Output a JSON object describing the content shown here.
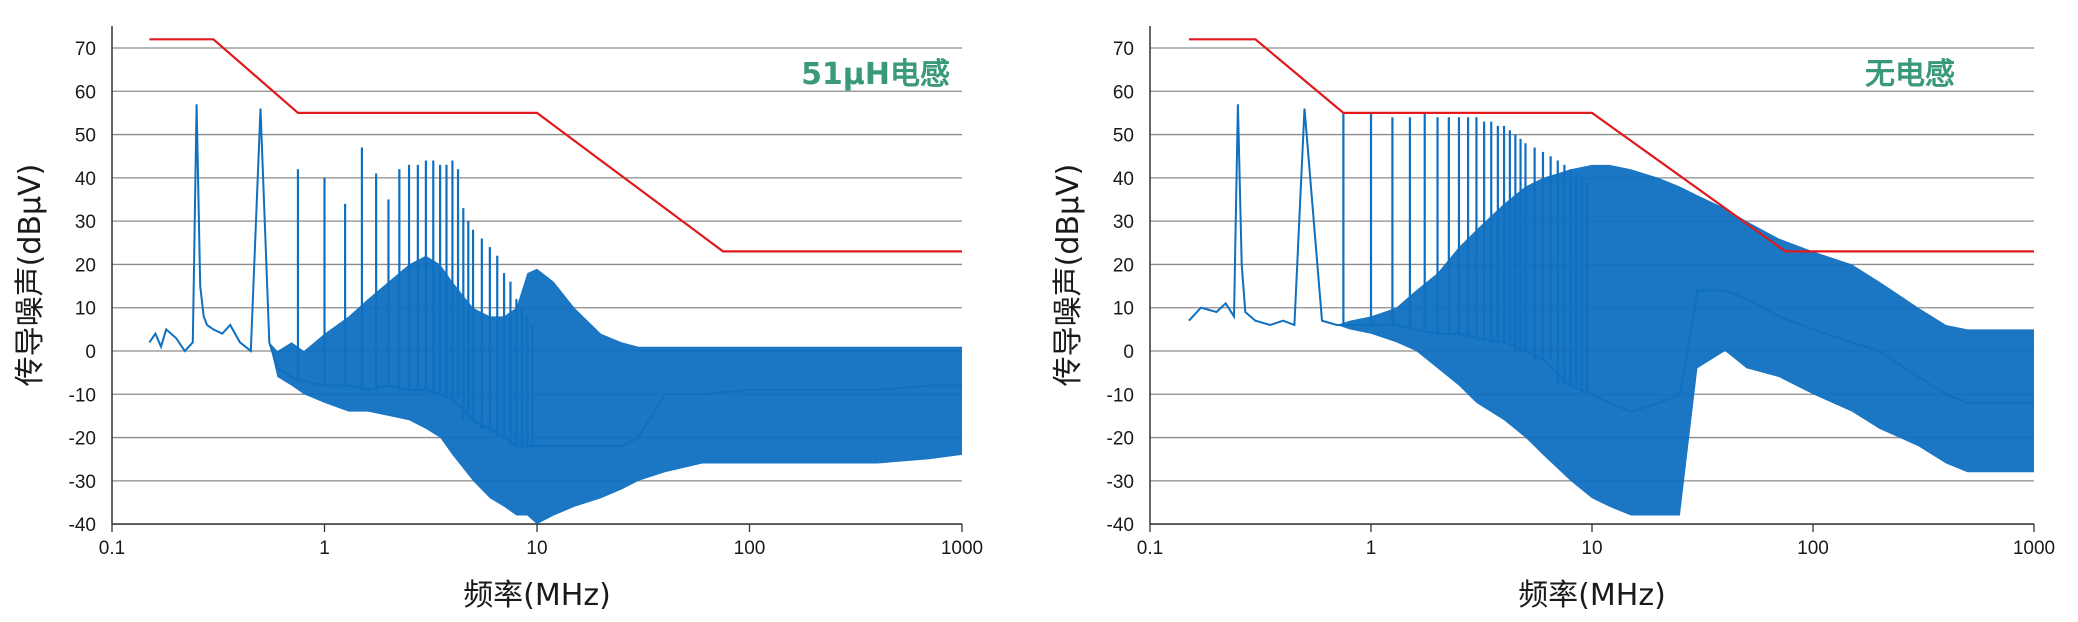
{
  "chart_data": [
    {
      "type": "line",
      "annotation": "51μH电感",
      "xlabel": "频率(MHz)",
      "ylabel": "传导噪声(dBμV)",
      "x_scale": "log",
      "xlim": [
        0.1,
        1000
      ],
      "ylim": [
        -40,
        75
      ],
      "x_ticks": [
        "0.1",
        "1",
        "10",
        "100",
        "1000"
      ],
      "y_ticks": [
        "70",
        "60",
        "50",
        "40",
        "30",
        "20",
        "10",
        "0",
        "-10",
        "-20",
        "-30",
        "-40"
      ],
      "grid": true,
      "colors": {
        "limit": "#e0191b",
        "noise": "#0f6fc0",
        "grid": "#8c8c8c"
      },
      "series": [
        {
          "role": "limit",
          "x": [
            0.15,
            0.3,
            0.75,
            10,
            75,
            1000
          ],
          "y": [
            72,
            72,
            55,
            55,
            23,
            23
          ]
        },
        {
          "role": "noise",
          "x": [
            0.15,
            0.16,
            0.17,
            0.18,
            0.2,
            0.22,
            0.24,
            0.25,
            0.26,
            0.27,
            0.28,
            0.3,
            0.33,
            0.36,
            0.4,
            0.45,
            0.5,
            0.55,
            0.6,
            0.7,
            0.8,
            1,
            1.3,
            1.6,
            2,
            2.5,
            3,
            3.5,
            4,
            5,
            6,
            7,
            8,
            9,
            10,
            12,
            15,
            20,
            25,
            30,
            40,
            60,
            100,
            200,
            400,
            700,
            1000
          ],
          "y": [
            2,
            4,
            1,
            5,
            3,
            0,
            2,
            57,
            15,
            8,
            6,
            5,
            4,
            6,
            2,
            0,
            56,
            2,
            -4,
            -6,
            -7,
            -8,
            -8,
            -9,
            -8,
            -9,
            -9,
            -10,
            -11,
            -16,
            -18,
            -20,
            -22,
            -22,
            -22,
            -22,
            -22,
            -22,
            -22,
            -20,
            -10,
            -10,
            -9,
            -9,
            -9,
            -8,
            -8
          ],
          "upper": [
            2,
            4,
            1,
            5,
            3,
            0,
            2,
            57,
            15,
            8,
            6,
            5,
            4,
            6,
            2,
            0,
            56,
            2,
            0,
            2,
            0,
            4,
            8,
            12,
            16,
            20,
            22,
            20,
            16,
            10,
            8,
            8,
            10,
            18,
            19,
            16,
            10,
            4,
            2,
            1,
            1,
            1,
            1,
            1,
            1,
            1,
            1
          ],
          "lower": [
            2,
            4,
            1,
            5,
            3,
            0,
            2,
            57,
            15,
            8,
            6,
            5,
            4,
            6,
            2,
            0,
            56,
            2,
            -6,
            -8,
            -10,
            -12,
            -14,
            -14,
            -15,
            -16,
            -18,
            -20,
            -24,
            -30,
            -34,
            -36,
            -38,
            -38,
            -40,
            -38,
            -36,
            -34,
            -32,
            -30,
            -28,
            -26,
            -26,
            -26,
            -26,
            -25,
            -24
          ],
          "spikes_x": [
            0.25,
            0.5,
            0.75,
            1,
            1.25,
            1.5,
            1.75,
            2,
            2.25,
            2.5,
            2.75,
            3,
            3.25,
            3.5,
            3.75,
            4,
            4.25,
            4.5,
            4.75,
            5,
            5.5,
            6,
            6.5,
            7,
            7.5,
            8,
            8.5,
            9,
            9.5
          ],
          "spikes_y": [
            57,
            56,
            42,
            40,
            34,
            47,
            41,
            35,
            42,
            43,
            43,
            44,
            44,
            43,
            43,
            44,
            42,
            33,
            30,
            28,
            26,
            24,
            22,
            18,
            16,
            12,
            10,
            8,
            6
          ]
        }
      ]
    },
    {
      "type": "line",
      "annotation": "无电感",
      "xlabel": "频率(MHz)",
      "ylabel": "传导噪声(dBμV)",
      "x_scale": "log",
      "xlim": [
        0.1,
        1000
      ],
      "ylim": [
        -40,
        75
      ],
      "x_ticks": [
        "0.1",
        "1",
        "10",
        "100",
        "1000"
      ],
      "y_ticks": [
        "70",
        "60",
        "50",
        "40",
        "30",
        "20",
        "10",
        "0",
        "-10",
        "-20",
        "-30",
        "-40"
      ],
      "grid": true,
      "colors": {
        "limit": "#e0191b",
        "noise": "#0f6fc0",
        "grid": "#8c8c8c"
      },
      "series": [
        {
          "role": "limit",
          "x": [
            0.15,
            0.3,
            0.75,
            10,
            75,
            1000
          ],
          "y": [
            72,
            72,
            55,
            55,
            23,
            23
          ]
        },
        {
          "role": "noise",
          "x": [
            0.15,
            0.17,
            0.2,
            0.22,
            0.24,
            0.25,
            0.26,
            0.27,
            0.3,
            0.35,
            0.4,
            0.45,
            0.5,
            0.6,
            0.7,
            0.8,
            1,
            1.3,
            1.6,
            2,
            2.5,
            3,
            4,
            5,
            6,
            8,
            10,
            12,
            15,
            20,
            25,
            30,
            40,
            50,
            70,
            100,
            150,
            200,
            300,
            400,
            500,
            700,
            1000
          ],
          "y": [
            7,
            10,
            9,
            11,
            8,
            57,
            20,
            9,
            7,
            6,
            7,
            6,
            56,
            7,
            6,
            6,
            6,
            6,
            5,
            4,
            4,
            3,
            2,
            0,
            -2,
            -8,
            -10,
            -12,
            -14,
            -12,
            -10,
            14,
            14,
            12,
            8,
            5,
            2,
            0,
            -6,
            -10,
            -12,
            -12,
            -12
          ],
          "upper": [
            7,
            10,
            9,
            11,
            8,
            57,
            20,
            9,
            7,
            6,
            7,
            6,
            56,
            7,
            6,
            7,
            8,
            10,
            14,
            18,
            24,
            28,
            34,
            38,
            40,
            42,
            43,
            43,
            42,
            40,
            38,
            36,
            33,
            30,
            26,
            23,
            20,
            16,
            10,
            6,
            5,
            5,
            5
          ],
          "lower": [
            7,
            10,
            9,
            11,
            8,
            57,
            20,
            9,
            7,
            6,
            7,
            6,
            56,
            7,
            6,
            5,
            4,
            2,
            0,
            -4,
            -8,
            -12,
            -16,
            -20,
            -24,
            -30,
            -34,
            -36,
            -38,
            -38,
            -38,
            -4,
            0,
            -4,
            -6,
            -10,
            -14,
            -18,
            -22,
            -26,
            -28,
            -28,
            -28
          ],
          "spikes_x": [
            0.25,
            0.5,
            0.75,
            1,
            1.25,
            1.5,
            1.75,
            2,
            2.25,
            2.5,
            2.75,
            3,
            3.25,
            3.5,
            3.75,
            4,
            4.25,
            4.5,
            4.75,
            5,
            5.5,
            6,
            6.5,
            7,
            7.5,
            8,
            8.5,
            9,
            9.5
          ],
          "spikes_y": [
            57,
            56,
            55,
            55,
            54,
            54,
            55,
            54,
            54,
            54,
            54,
            54,
            53,
            53,
            52,
            52,
            51,
            50,
            49,
            48,
            47,
            46,
            45,
            44,
            43,
            42,
            41,
            40,
            39
          ]
        }
      ]
    }
  ]
}
